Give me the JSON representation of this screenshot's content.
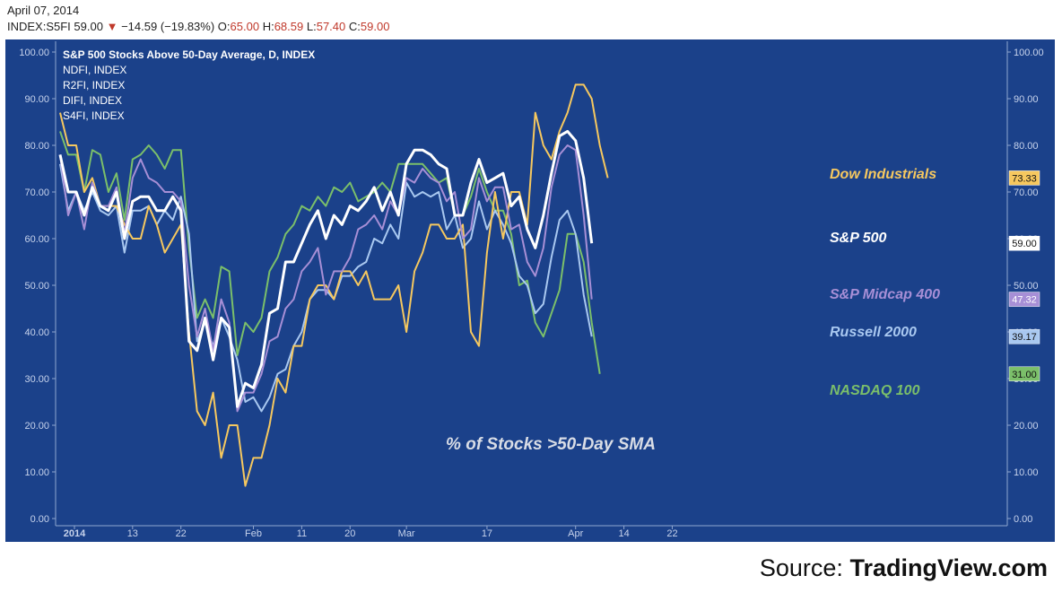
{
  "header": {
    "date": "April 07, 2014",
    "symbol": "INDEX:S5FI",
    "last": "59.00",
    "change_arrow": "▼",
    "change": "−14.59 (−19.83%)",
    "o_label": "O:",
    "o_val": "65.00",
    "h_label": "H:",
    "h_val": "68.59",
    "l_label": "L:",
    "l_val": "57.40",
    "c_label": "C:",
    "c_val": "59.00"
  },
  "source": {
    "prefix": "Source: ",
    "brand": "TradingView.com"
  },
  "chart_data": {
    "type": "line",
    "title": "S&P 500 Stocks Above 50-Day Average, D, INDEX",
    "subtitle": "% of Stocks >50-Day SMA",
    "legend_entries": [
      "NDFI, INDEX",
      "R2FI, INDEX",
      "DIFI, INDEX",
      "S4FI, INDEX"
    ],
    "ylim": [
      0,
      100
    ],
    "y_ticks": [
      "100.00",
      "90.00",
      "80.00",
      "70.00",
      "60.00",
      "50.00",
      "40.00",
      "30.00",
      "20.00",
      "10.00",
      "0.00"
    ],
    "x_ticks": [
      {
        "label": "2014",
        "i": 0
      },
      {
        "label": "13",
        "i": 9
      },
      {
        "label": "22",
        "i": 15
      },
      {
        "label": "Feb",
        "i": 24
      },
      {
        "label": "11",
        "i": 30
      },
      {
        "label": "20",
        "i": 36
      },
      {
        "label": "Mar",
        "i": 43
      },
      {
        "label": "17",
        "i": 53
      },
      {
        "label": "Apr",
        "i": 64
      },
      {
        "label": "14",
        "i": 70
      },
      {
        "label": "22",
        "i": 76
      }
    ],
    "grid": false,
    "colors": {
      "background": "#1b418a",
      "axis_text": "#c7d3ec",
      "ndfi": "#7bbf6a",
      "r2fi": "#a9c8f0",
      "difi": "#f6c85f",
      "s4fi": "#a78fd6",
      "s5fi": "#ffffff"
    },
    "series": [
      {
        "key": "ndfi",
        "name": "NASDAQ 100",
        "end_label": "31.00",
        "values": [
          83,
          78,
          78,
          70,
          79,
          78,
          70,
          74,
          64,
          77,
          78,
          80,
          78,
          75,
          79,
          79,
          58,
          43,
          47,
          43,
          54,
          53,
          35,
          42,
          40,
          43,
          53,
          56,
          61,
          63,
          67,
          66,
          69,
          67,
          71,
          70,
          72,
          68,
          69,
          70,
          72,
          70,
          76,
          76,
          76,
          76,
          74,
          72,
          73,
          65,
          65,
          69,
          75,
          70,
          66,
          66,
          61,
          50,
          51,
          42,
          39,
          44,
          49,
          61,
          61,
          55,
          42,
          31
        ]
      },
      {
        "key": "r2fi",
        "name": "Russell 2000",
        "end_label": "39.17",
        "values": [
          76,
          66,
          70,
          66,
          70,
          66,
          65,
          67,
          57,
          66,
          66,
          67,
          63,
          66,
          64,
          69,
          61,
          38,
          42,
          37,
          43,
          39,
          34,
          25,
          26,
          23,
          26,
          31,
          32,
          37,
          40,
          47,
          49,
          49,
          47,
          52,
          52,
          54,
          55,
          60,
          59,
          63,
          60,
          72,
          69,
          70,
          69,
          70,
          62,
          65,
          58,
          60,
          68,
          62,
          66,
          63,
          59,
          52,
          50,
          44,
          46,
          56,
          64,
          66,
          61,
          48,
          39
        ]
      },
      {
        "key": "difi",
        "name": "Dow Industrials",
        "end_label": "73.33",
        "values": [
          87,
          80,
          80,
          70,
          73,
          67,
          67,
          67,
          63,
          60,
          60,
          67,
          63,
          57,
          60,
          63,
          40,
          23,
          20,
          27,
          13,
          20,
          20,
          7,
          13,
          13,
          20,
          30,
          27,
          37,
          37,
          47,
          50,
          50,
          47,
          53,
          53,
          50,
          53,
          47,
          47,
          47,
          50,
          40,
          53,
          57,
          63,
          63,
          60,
          60,
          63,
          40,
          37,
          57,
          70,
          60,
          70,
          70,
          63,
          87,
          80,
          77,
          83,
          87,
          93,
          93,
          90,
          80,
          73
        ]
      },
      {
        "key": "s4fi",
        "name": "S&P Midcap 400",
        "end_label": "47.32",
        "values": [
          78,
          65,
          70,
          62,
          72,
          67,
          67,
          71,
          61,
          73,
          77,
          73,
          72,
          70,
          70,
          68,
          50,
          39,
          45,
          36,
          47,
          42,
          23,
          27,
          27,
          31,
          38,
          39,
          45,
          47,
          53,
          55,
          58,
          48,
          53,
          53,
          56,
          62,
          63,
          65,
          62,
          68,
          65,
          73,
          72,
          75,
          73,
          72,
          68,
          70,
          60,
          62,
          73,
          68,
          71,
          71,
          62,
          63,
          55,
          52,
          58,
          71,
          78,
          80,
          79,
          65,
          47
        ]
      },
      {
        "key": "s5fi",
        "name": "S&P 500",
        "end_label": "59.00",
        "values": [
          78,
          70,
          70,
          65,
          71,
          67,
          66,
          70,
          60,
          68,
          69,
          69,
          66,
          66,
          69,
          66,
          38,
          36,
          43,
          34,
          43,
          41,
          24,
          29,
          28,
          33,
          44,
          45,
          55,
          55,
          59,
          63,
          66,
          60,
          65,
          63,
          67,
          66,
          68,
          71,
          66,
          70,
          65,
          76,
          79,
          79,
          78,
          76,
          75,
          65,
          65,
          72,
          77,
          72,
          73,
          74,
          67,
          69,
          62,
          58,
          65,
          74,
          82,
          83,
          81,
          73,
          59
        ]
      }
    ]
  }
}
